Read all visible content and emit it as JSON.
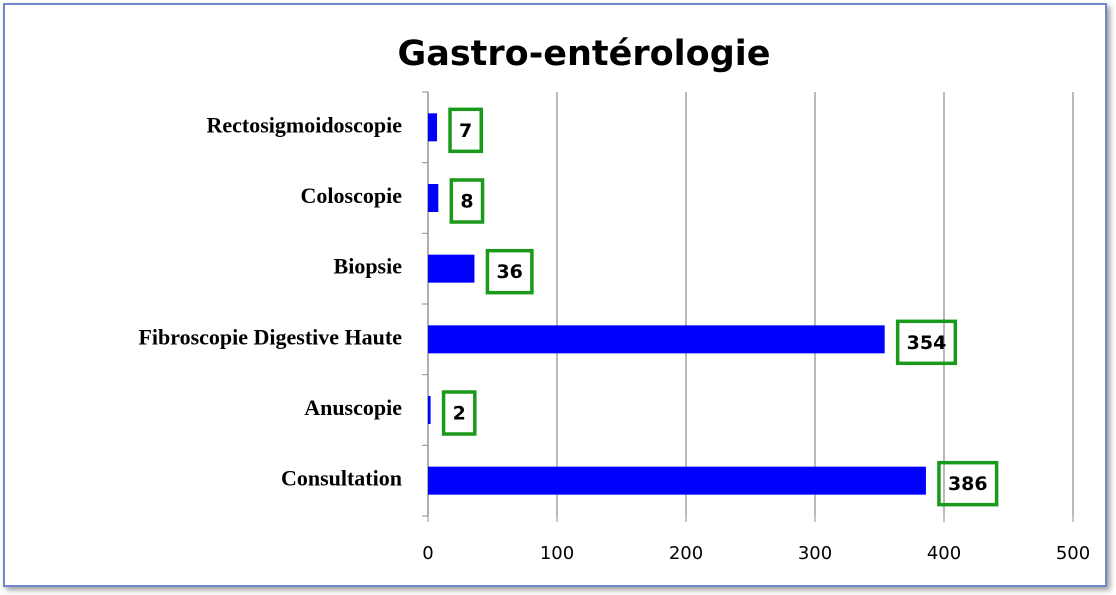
{
  "chart_data": {
    "type": "bar",
    "orientation": "horizontal",
    "title": "Gastro-entérologie",
    "categories": [
      "Rectosigmoidoscopie",
      "Coloscopie",
      "Biopsie",
      "Fibroscopie Digestive Haute",
      "Anuscopie",
      "Consultation"
    ],
    "values": [
      7,
      8,
      36,
      354,
      2,
      386
    ],
    "color": "#0000ff",
    "label_box_color": "#1a9a1a",
    "xlim": [
      0,
      500
    ],
    "xticks": [
      0,
      100,
      200,
      300,
      400,
      500
    ],
    "grid": true
  }
}
